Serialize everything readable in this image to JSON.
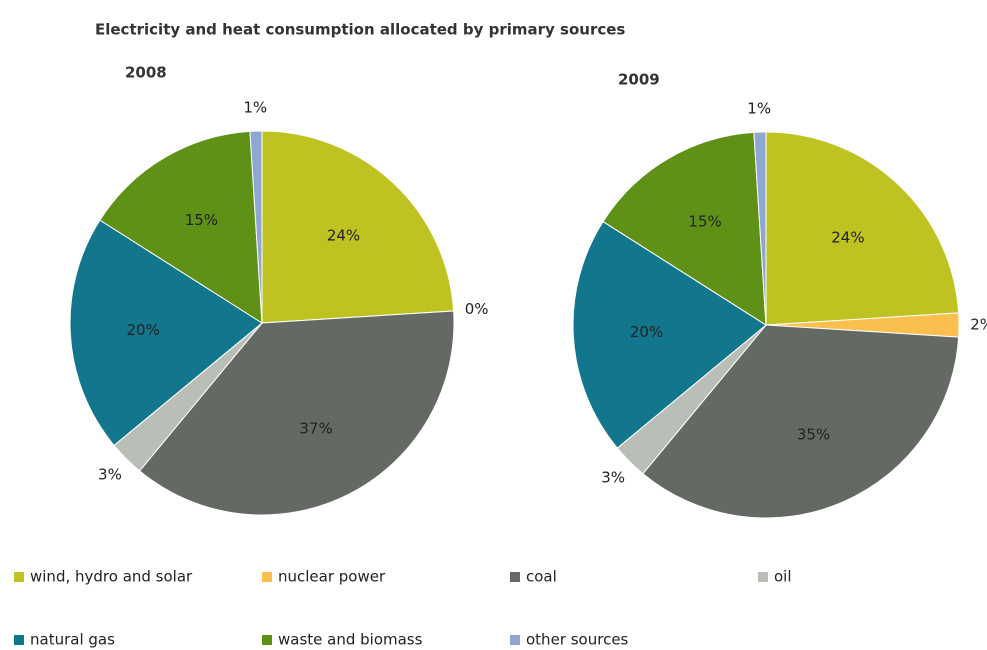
{
  "title": "Electricity and heat consumption allocated by primary sources",
  "chart_data": [
    {
      "type": "pie",
      "title": "2008",
      "categories": [
        "wind, hydro and solar",
        "nuclear power",
        "coal",
        "oil",
        "natural gas",
        "waste and biomass",
        "other sources"
      ],
      "values": [
        24,
        0,
        37,
        3,
        20,
        15,
        1
      ],
      "value_labels": [
        "24%",
        "0%",
        "37%",
        "3%",
        "20%",
        "15%",
        "1%"
      ],
      "colors": [
        "#bec322",
        "#fbbf4f",
        "#646a63",
        "#b9bfb6",
        "#12778d",
        "#5f9117",
        "#8ea7d2"
      ]
    },
    {
      "type": "pie",
      "title": "2009",
      "categories": [
        "wind, hydro and solar",
        "nuclear power",
        "coal",
        "oil",
        "natural gas",
        "waste and biomass",
        "other sources"
      ],
      "values": [
        24,
        2,
        35,
        3,
        20,
        15,
        1
      ],
      "value_labels": [
        "24%",
        "2%",
        "35%",
        "3%",
        "20%",
        "15%",
        "1%"
      ],
      "colors": [
        "#bec322",
        "#fbbf4f",
        "#646a63",
        "#b9bfb6",
        "#12778d",
        "#5f9117",
        "#8ea7d2"
      ]
    }
  ]
}
